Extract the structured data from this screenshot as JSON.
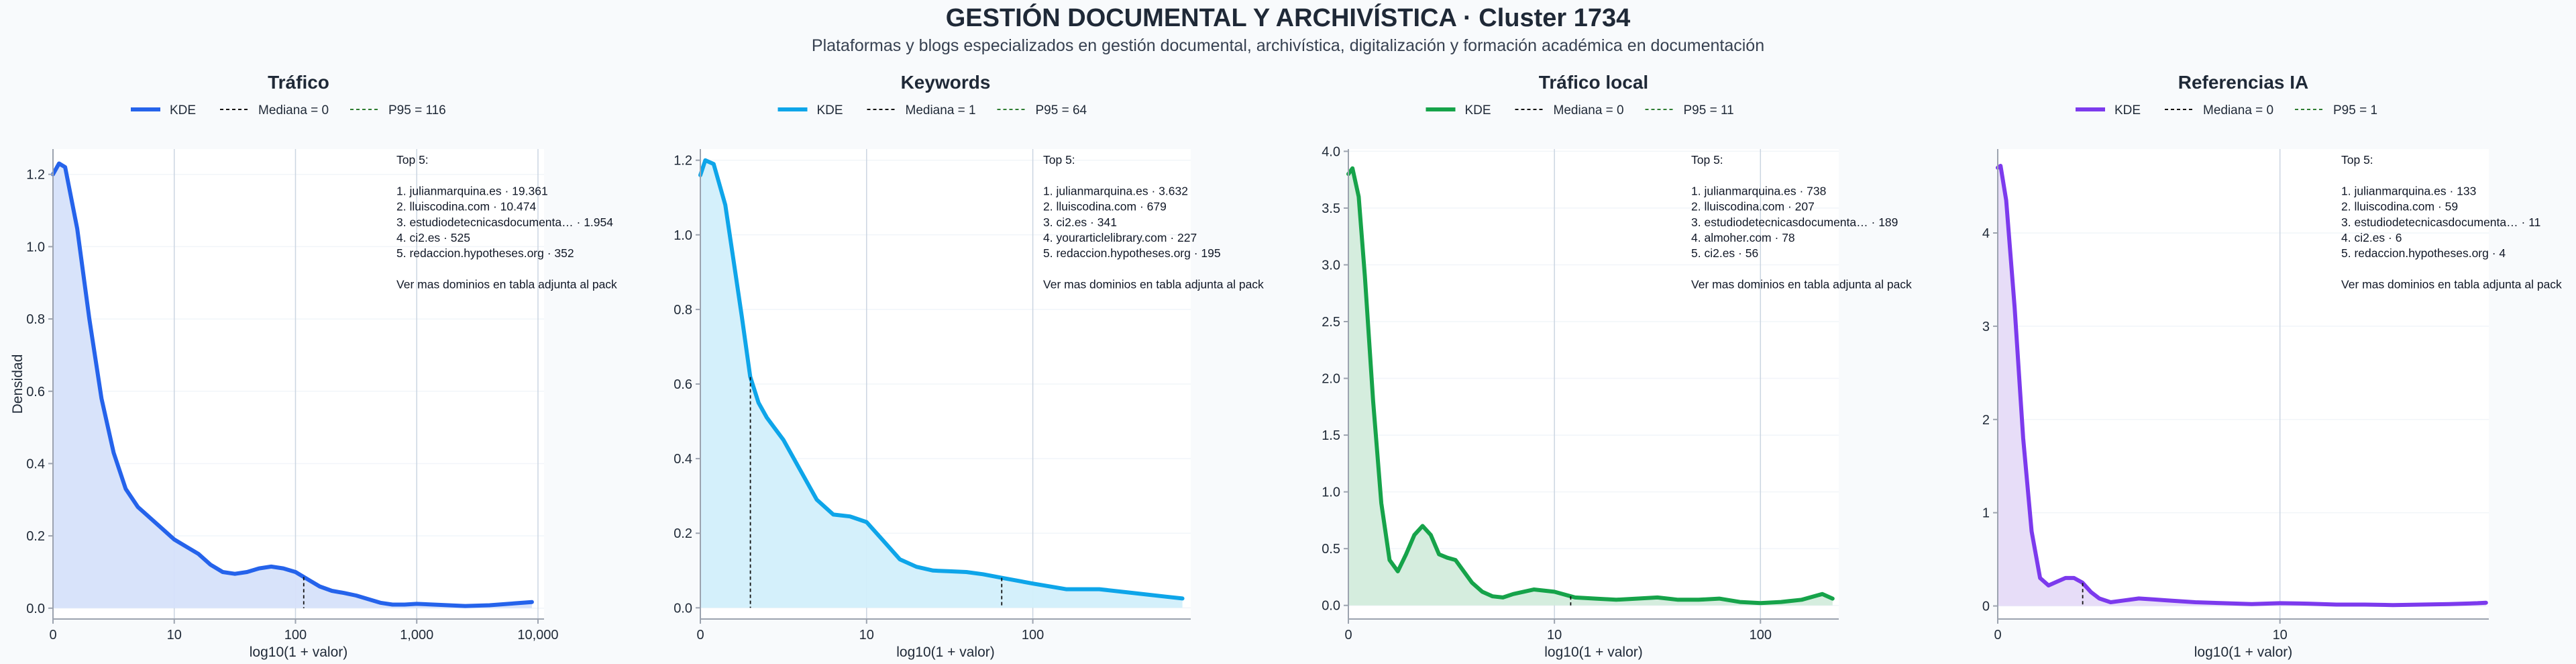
{
  "page": {
    "title": "GESTIÓN DOCUMENTAL Y ARCHIVÍSTICA · Cluster 1734",
    "subtitle": "Plataformas y blogs especializados en gestión documental, archivística, digitalización y formación académica en documentación"
  },
  "colors": {
    "median_line": "#111111",
    "p95_line": "#2e7d32",
    "grid": "#e5e7eb",
    "axis": "#9ca3af"
  },
  "chart_data": [
    {
      "type": "area",
      "title": "Tráfico",
      "color": "#2563eb",
      "fill": "#d6e1fa",
      "xlabel": "log10(1 + valor)",
      "ylabel": "Densidad",
      "x_scale": "log10(1+x)",
      "xlim": [
        0,
        4.05
      ],
      "ylim": [
        -0.03,
        1.27
      ],
      "xticks": [
        {
          "v": 0,
          "label": "0"
        },
        {
          "v": 1,
          "label": "10"
        },
        {
          "v": 2,
          "label": "100"
        },
        {
          "v": 3,
          "label": "1,000"
        },
        {
          "v": 4,
          "label": "10,000"
        }
      ],
      "yticks": [
        {
          "v": 0,
          "label": "0.0"
        },
        {
          "v": 0.2,
          "label": "0.2"
        },
        {
          "v": 0.4,
          "label": "0.4"
        },
        {
          "v": 0.6,
          "label": "0.6"
        },
        {
          "v": 0.8,
          "label": "0.8"
        },
        {
          "v": 1.0,
          "label": "1.0"
        },
        {
          "v": 1.2,
          "label": "1.2"
        }
      ],
      "kde": {
        "x": [
          0,
          0.05,
          0.1,
          0.2,
          0.3,
          0.4,
          0.5,
          0.6,
          0.7,
          0.8,
          0.9,
          1.0,
          1.1,
          1.2,
          1.3,
          1.4,
          1.5,
          1.6,
          1.7,
          1.8,
          1.9,
          2.0,
          2.1,
          2.2,
          2.3,
          2.4,
          2.5,
          2.6,
          2.7,
          2.8,
          2.9,
          3.0,
          3.2,
          3.4,
          3.6,
          3.8,
          3.95
        ],
        "y": [
          1.2,
          1.23,
          1.22,
          1.05,
          0.8,
          0.58,
          0.43,
          0.33,
          0.28,
          0.25,
          0.22,
          0.19,
          0.17,
          0.15,
          0.12,
          0.1,
          0.095,
          0.1,
          0.11,
          0.115,
          0.11,
          0.1,
          0.08,
          0.06,
          0.048,
          0.042,
          0.035,
          0.025,
          0.015,
          0.01,
          0.01,
          0.012,
          0.009,
          0.006,
          0.008,
          0.013,
          0.017
        ]
      },
      "median": {
        "x": 0,
        "label": "Mediana = 0"
      },
      "p95": {
        "x": 2.068,
        "label": "P95 = 116"
      },
      "kde_label": "KDE",
      "annotation": [
        "Top 5:",
        "",
        "1. julianmarquina.es · 19.361",
        "2. lluiscodina.com · 10.474",
        "3. estudiodetecnicasdocumenta… · 1.954",
        "4. ci2.es · 525",
        "5. redaccion.hypotheses.org · 352",
        "",
        "Ver mas dominios en tabla adjunta al pack"
      ]
    },
    {
      "type": "area",
      "title": "Keywords",
      "color": "#0ea5e9",
      "fill": "#d2effb",
      "xlabel": "log10(1 + valor)",
      "ylabel": "",
      "x_scale": "log10(1+x)",
      "xlim": [
        0,
        2.95
      ],
      "ylim": [
        -0.03,
        1.23
      ],
      "xticks": [
        {
          "v": 0,
          "label": "0"
        },
        {
          "v": 1,
          "label": "10"
        },
        {
          "v": 2,
          "label": "100"
        }
      ],
      "yticks": [
        {
          "v": 0,
          "label": "0.0"
        },
        {
          "v": 0.2,
          "label": "0.2"
        },
        {
          "v": 0.4,
          "label": "0.4"
        },
        {
          "v": 0.6,
          "label": "0.6"
        },
        {
          "v": 0.8,
          "label": "0.8"
        },
        {
          "v": 1.0,
          "label": "1.0"
        },
        {
          "v": 1.2,
          "label": "1.2"
        }
      ],
      "kde": {
        "x": [
          0,
          0.03,
          0.08,
          0.15,
          0.2,
          0.25,
          0.3,
          0.35,
          0.4,
          0.45,
          0.5,
          0.55,
          0.6,
          0.7,
          0.8,
          0.9,
          1.0,
          1.1,
          1.2,
          1.3,
          1.4,
          1.5,
          1.6,
          1.7,
          1.82,
          2.0,
          2.2,
          2.4,
          2.6,
          2.8,
          2.9
        ],
        "y": [
          1.16,
          1.2,
          1.19,
          1.08,
          0.93,
          0.78,
          0.62,
          0.55,
          0.51,
          0.48,
          0.45,
          0.41,
          0.37,
          0.29,
          0.25,
          0.245,
          0.23,
          0.18,
          0.13,
          0.11,
          0.1,
          0.098,
          0.096,
          0.09,
          0.08,
          0.065,
          0.05,
          0.05,
          0.04,
          0.03,
          0.025
        ]
      },
      "median": {
        "x": 0.301,
        "label": "Mediana = 1"
      },
      "p95": {
        "x": 1.813,
        "label": "P95 = 64"
      },
      "kde_label": "KDE",
      "annotation": [
        "Top 5:",
        "",
        "1. julianmarquina.es · 3.632",
        "2. lluiscodina.com · 679",
        "3. ci2.es · 341",
        "4. yourarticlelibrary.com · 227",
        "5. redaccion.hypotheses.org · 195",
        "",
        "Ver mas dominios en tabla adjunta al pack"
      ]
    },
    {
      "type": "area",
      "title": "Tráfico local",
      "color": "#16a34a",
      "fill": "#d3ecdc",
      "xlabel": "log10(1 + valor)",
      "ylabel": "",
      "x_scale": "log10(1+x)",
      "xlim": [
        0,
        2.38
      ],
      "ylim": [
        -0.12,
        4.02
      ],
      "xticks": [
        {
          "v": 0,
          "label": "0"
        },
        {
          "v": 1,
          "label": "10"
        },
        {
          "v": 2,
          "label": "100"
        }
      ],
      "yticks": [
        {
          "v": 0,
          "label": "0.0"
        },
        {
          "v": 0.5,
          "label": "0.5"
        },
        {
          "v": 1.0,
          "label": "1.0"
        },
        {
          "v": 1.5,
          "label": "1.5"
        },
        {
          "v": 2.0,
          "label": "2.0"
        },
        {
          "v": 2.5,
          "label": "2.5"
        },
        {
          "v": 3.0,
          "label": "3.0"
        },
        {
          "v": 3.5,
          "label": "3.5"
        },
        {
          "v": 4.0,
          "label": "4.0"
        }
      ],
      "kde": {
        "x": [
          0,
          0.02,
          0.05,
          0.08,
          0.12,
          0.16,
          0.2,
          0.24,
          0.28,
          0.32,
          0.36,
          0.4,
          0.44,
          0.48,
          0.52,
          0.56,
          0.6,
          0.65,
          0.7,
          0.75,
          0.8,
          0.9,
          1.0,
          1.1,
          1.2,
          1.3,
          1.4,
          1.5,
          1.6,
          1.7,
          1.8,
          1.9,
          2.0,
          2.1,
          2.2,
          2.3,
          2.35
        ],
        "y": [
          3.8,
          3.85,
          3.6,
          2.9,
          1.8,
          0.9,
          0.4,
          0.3,
          0.45,
          0.62,
          0.7,
          0.62,
          0.45,
          0.42,
          0.4,
          0.3,
          0.2,
          0.12,
          0.08,
          0.07,
          0.1,
          0.14,
          0.12,
          0.07,
          0.06,
          0.05,
          0.06,
          0.07,
          0.05,
          0.05,
          0.06,
          0.03,
          0.02,
          0.03,
          0.05,
          0.1,
          0.06
        ]
      },
      "median": {
        "x": 0,
        "label": "Mediana = 0"
      },
      "p95": {
        "x": 1.079,
        "label": "P95 = 11"
      },
      "kde_label": "KDE",
      "annotation": [
        "Top 5:",
        "",
        "1. julianmarquina.es · 738",
        "2. lluiscodina.com · 207",
        "3. estudiodetecnicasdocumenta… · 189",
        "4. almoher.com · 78",
        "5. ci2.es · 56",
        "",
        "Ver mas dominios en tabla adjunta al pack"
      ]
    },
    {
      "type": "area",
      "title": "Referencias IA",
      "color": "#7c3aed",
      "fill": "#e6dbf8",
      "xlabel": "log10(1 + valor)",
      "ylabel": "",
      "x_scale": "log10(1+x)",
      "xlim": [
        0,
        1.74
      ],
      "ylim": [
        -0.14,
        4.9
      ],
      "xticks": [
        {
          "v": 0,
          "label": "0"
        },
        {
          "v": 1,
          "label": "10"
        }
      ],
      "yticks": [
        {
          "v": 0,
          "label": "0"
        },
        {
          "v": 1,
          "label": "1"
        },
        {
          "v": 2,
          "label": "2"
        },
        {
          "v": 3,
          "label": "3"
        },
        {
          "v": 4,
          "label": "4"
        }
      ],
      "kde": {
        "x": [
          0,
          0.01,
          0.03,
          0.06,
          0.09,
          0.12,
          0.15,
          0.18,
          0.21,
          0.24,
          0.27,
          0.3,
          0.33,
          0.36,
          0.4,
          0.45,
          0.5,
          0.55,
          0.6,
          0.7,
          0.8,
          0.9,
          1.0,
          1.1,
          1.2,
          1.3,
          1.4,
          1.5,
          1.6,
          1.7,
          1.73
        ],
        "y": [
          4.7,
          4.72,
          4.35,
          3.2,
          1.8,
          0.8,
          0.3,
          0.22,
          0.26,
          0.3,
          0.3,
          0.25,
          0.15,
          0.08,
          0.04,
          0.06,
          0.08,
          0.07,
          0.06,
          0.04,
          0.03,
          0.02,
          0.03,
          0.025,
          0.015,
          0.015,
          0.01,
          0.015,
          0.02,
          0.03,
          0.035
        ]
      },
      "median": {
        "x": 0,
        "label": "Mediana = 0"
      },
      "p95": {
        "x": 0.301,
        "label": "P95 = 1"
      },
      "kde_label": "KDE",
      "annotation": [
        "Top 5:",
        "",
        "1. julianmarquina.es · 133",
        "2. lluiscodina.com · 59",
        "3. estudiodetecnicasdocumenta… · 11",
        "4. ci2.es · 6",
        "5. redaccion.hypotheses.org · 4",
        "",
        "Ver mas dominios en tabla adjunta al pack"
      ]
    }
  ]
}
